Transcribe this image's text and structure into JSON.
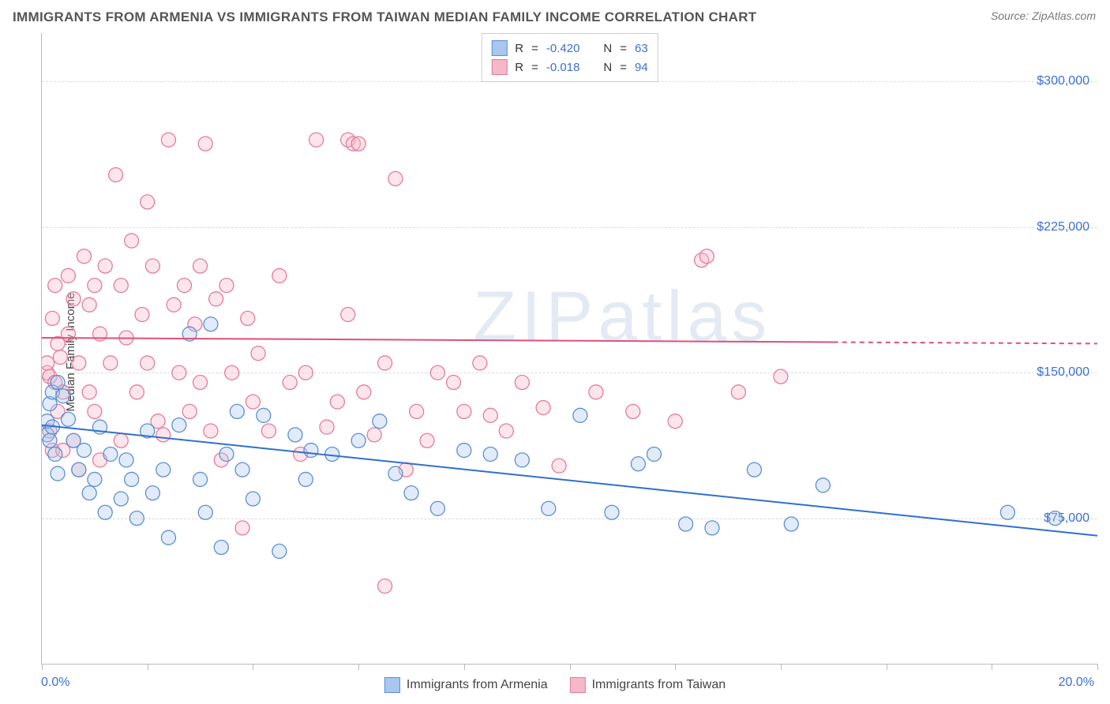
{
  "title": "IMMIGRANTS FROM ARMENIA VS IMMIGRANTS FROM TAIWAN MEDIAN FAMILY INCOME CORRELATION CHART",
  "source_label": "Source:",
  "source_name": "ZipAtlas.com",
  "ylabel": "Median Family Income",
  "watermark": "ZIPatlas",
  "chart": {
    "type": "scatter",
    "xlim": [
      0,
      20
    ],
    "ylim": [
      0,
      325000
    ],
    "x_tick_positions": [
      0,
      2.0,
      4.0,
      6.0,
      8.0,
      10.0,
      12.0,
      14.0,
      16.0,
      18.0,
      20.0
    ],
    "y_ticks": [
      75000,
      150000,
      225000,
      300000
    ],
    "y_tick_labels": [
      "$75,000",
      "$150,000",
      "$225,000",
      "$300,000"
    ],
    "x_label_min": "0.0%",
    "x_label_max": "20.0%",
    "background_color": "#ffffff",
    "grid_color": "#dddddd",
    "axis_color": "#bbbbbb",
    "marker_radius": 9,
    "marker_stroke_width": 1.3,
    "marker_fill_opacity": 0.35,
    "series": [
      {
        "name": "Immigrants from Armenia",
        "color_fill": "#a8c7ee",
        "color_stroke": "#5b8fd6",
        "line_color": "#2f6fd0",
        "line_width": 2,
        "R": "-0.420",
        "N": "63",
        "regression": {
          "x1": 0,
          "y1": 123000,
          "x2": 20,
          "y2": 66000
        },
        "points": [
          [
            0.1,
            125000
          ],
          [
            0.1,
            118000
          ],
          [
            0.15,
            134000
          ],
          [
            0.15,
            115000
          ],
          [
            0.2,
            140000
          ],
          [
            0.2,
            122000
          ],
          [
            0.25,
            108000
          ],
          [
            0.3,
            145000
          ],
          [
            0.3,
            98000
          ],
          [
            0.4,
            138000
          ],
          [
            0.5,
            126000
          ],
          [
            0.6,
            115000
          ],
          [
            0.7,
            100000
          ],
          [
            0.8,
            110000
          ],
          [
            0.9,
            88000
          ],
          [
            1.0,
            95000
          ],
          [
            1.1,
            122000
          ],
          [
            1.2,
            78000
          ],
          [
            1.3,
            108000
          ],
          [
            1.5,
            85000
          ],
          [
            1.6,
            105000
          ],
          [
            1.7,
            95000
          ],
          [
            1.8,
            75000
          ],
          [
            2.0,
            120000
          ],
          [
            2.1,
            88000
          ],
          [
            2.3,
            100000
          ],
          [
            2.4,
            65000
          ],
          [
            2.6,
            123000
          ],
          [
            2.8,
            170000
          ],
          [
            3.0,
            95000
          ],
          [
            3.1,
            78000
          ],
          [
            3.2,
            175000
          ],
          [
            3.4,
            60000
          ],
          [
            3.5,
            108000
          ],
          [
            3.7,
            130000
          ],
          [
            3.8,
            100000
          ],
          [
            4.0,
            85000
          ],
          [
            4.2,
            128000
          ],
          [
            4.5,
            58000
          ],
          [
            4.8,
            118000
          ],
          [
            5.0,
            95000
          ],
          [
            5.1,
            110000
          ],
          [
            5.5,
            108000
          ],
          [
            6.0,
            115000
          ],
          [
            6.4,
            125000
          ],
          [
            6.7,
            98000
          ],
          [
            7.0,
            88000
          ],
          [
            7.5,
            80000
          ],
          [
            8.0,
            110000
          ],
          [
            8.5,
            108000
          ],
          [
            9.1,
            105000
          ],
          [
            9.6,
            80000
          ],
          [
            10.2,
            128000
          ],
          [
            10.8,
            78000
          ],
          [
            11.3,
            103000
          ],
          [
            11.6,
            108000
          ],
          [
            12.2,
            72000
          ],
          [
            12.7,
            70000
          ],
          [
            13.5,
            100000
          ],
          [
            14.2,
            72000
          ],
          [
            14.8,
            92000
          ],
          [
            18.3,
            78000
          ],
          [
            19.2,
            75000
          ]
        ]
      },
      {
        "name": "Immigrants from Taiwan",
        "color_fill": "#f5b8c8",
        "color_stroke": "#e77a9a",
        "line_color": "#e04f7a",
        "line_width": 2,
        "R": "-0.018",
        "N": "94",
        "regression": {
          "x1": 0,
          "y1": 168000,
          "x2": 20,
          "y2": 165000
        },
        "regression_dashed_from_x": 15,
        "points": [
          [
            0.1,
            150000
          ],
          [
            0.1,
            155000
          ],
          [
            0.15,
            148000
          ],
          [
            0.15,
            120000
          ],
          [
            0.2,
            178000
          ],
          [
            0.2,
            110000
          ],
          [
            0.25,
            145000
          ],
          [
            0.25,
            195000
          ],
          [
            0.3,
            165000
          ],
          [
            0.3,
            130000
          ],
          [
            0.35,
            158000
          ],
          [
            0.4,
            110000
          ],
          [
            0.4,
            140000
          ],
          [
            0.5,
            200000
          ],
          [
            0.5,
            170000
          ],
          [
            0.6,
            115000
          ],
          [
            0.6,
            188000
          ],
          [
            0.7,
            155000
          ],
          [
            0.7,
            100000
          ],
          [
            0.8,
            210000
          ],
          [
            0.9,
            185000
          ],
          [
            0.9,
            140000
          ],
          [
            1.0,
            195000
          ],
          [
            1.0,
            130000
          ],
          [
            1.1,
            170000
          ],
          [
            1.1,
            105000
          ],
          [
            1.2,
            205000
          ],
          [
            1.3,
            155000
          ],
          [
            1.4,
            252000
          ],
          [
            1.5,
            195000
          ],
          [
            1.5,
            115000
          ],
          [
            1.6,
            168000
          ],
          [
            1.7,
            218000
          ],
          [
            1.8,
            140000
          ],
          [
            1.9,
            180000
          ],
          [
            2.0,
            238000
          ],
          [
            2.0,
            155000
          ],
          [
            2.1,
            205000
          ],
          [
            2.2,
            125000
          ],
          [
            2.3,
            118000
          ],
          [
            2.4,
            270000
          ],
          [
            2.5,
            185000
          ],
          [
            2.6,
            150000
          ],
          [
            2.7,
            195000
          ],
          [
            2.8,
            130000
          ],
          [
            2.9,
            175000
          ],
          [
            3.0,
            205000
          ],
          [
            3.0,
            145000
          ],
          [
            3.1,
            268000
          ],
          [
            3.2,
            120000
          ],
          [
            3.3,
            188000
          ],
          [
            3.4,
            105000
          ],
          [
            3.5,
            195000
          ],
          [
            3.6,
            150000
          ],
          [
            3.8,
            70000
          ],
          [
            3.9,
            178000
          ],
          [
            4.0,
            135000
          ],
          [
            4.1,
            160000
          ],
          [
            4.3,
            120000
          ],
          [
            4.5,
            200000
          ],
          [
            4.7,
            145000
          ],
          [
            4.9,
            108000
          ],
          [
            5.0,
            150000
          ],
          [
            5.2,
            270000
          ],
          [
            5.4,
            122000
          ],
          [
            5.6,
            135000
          ],
          [
            5.8,
            180000
          ],
          [
            5.8,
            270000
          ],
          [
            5.9,
            268000
          ],
          [
            6.0,
            268000
          ],
          [
            6.1,
            140000
          ],
          [
            6.3,
            118000
          ],
          [
            6.5,
            155000
          ],
          [
            6.7,
            250000
          ],
          [
            6.9,
            100000
          ],
          [
            7.1,
            130000
          ],
          [
            7.3,
            115000
          ],
          [
            7.5,
            150000
          ],
          [
            7.8,
            145000
          ],
          [
            8.0,
            130000
          ],
          [
            8.3,
            155000
          ],
          [
            8.5,
            128000
          ],
          [
            8.8,
            120000
          ],
          [
            9.1,
            145000
          ],
          [
            9.5,
            132000
          ],
          [
            9.8,
            102000
          ],
          [
            10.5,
            140000
          ],
          [
            11.2,
            130000
          ],
          [
            12.0,
            125000
          ],
          [
            12.5,
            208000
          ],
          [
            12.6,
            210000
          ],
          [
            13.2,
            140000
          ],
          [
            14.0,
            148000
          ],
          [
            6.5,
            40000
          ]
        ]
      }
    ]
  },
  "legend_labels": {
    "R": "R",
    "N": "N",
    "eq": "="
  },
  "colors": {
    "tick_label": "#3b6fd6",
    "text": "#444444"
  }
}
